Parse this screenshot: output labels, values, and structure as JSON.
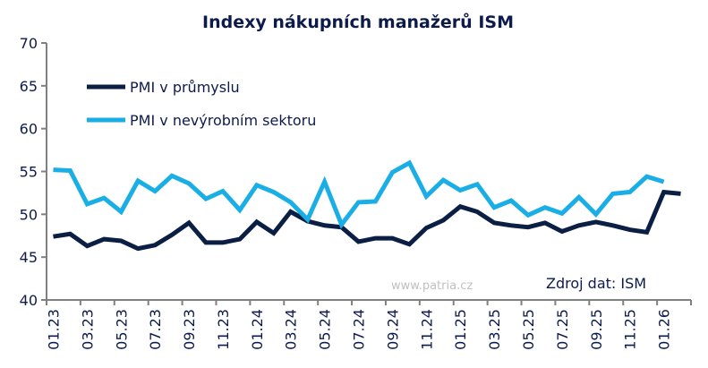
{
  "chart_data": {
    "type": "line",
    "title": "Indexy nákupních manažerů ISM",
    "xlabel": "",
    "ylabel": "",
    "ylim": [
      40,
      70
    ],
    "yticks": [
      40,
      45,
      50,
      55,
      60,
      65,
      70
    ],
    "grid": false,
    "legend_position": "top-left",
    "categories": [
      "01.23",
      "02.23",
      "03.23",
      "04.23",
      "05.23",
      "06.23",
      "07.23",
      "08.23",
      "09.23",
      "10.23",
      "11.23",
      "12.23",
      "01.24",
      "02.24",
      "03.24",
      "04.24",
      "05.24",
      "06.24",
      "07.24",
      "08.24",
      "09.24",
      "10.24",
      "11.24",
      "12.24",
      "01.25",
      "02.25",
      "03.25",
      "04.25",
      "05.25",
      "06.25",
      "07.25",
      "08.25",
      "09.25",
      "10.25",
      "11.25",
      "12.25",
      "01.26",
      "02.26"
    ],
    "series": [
      {
        "name": "PMI v průmyslu",
        "color": "#0b1f45",
        "values": [
          47.4,
          47.7,
          46.3,
          47.1,
          46.9,
          46.0,
          46.4,
          47.6,
          49.0,
          46.7,
          46.7,
          47.1,
          49.1,
          47.8,
          50.3,
          49.2,
          48.7,
          48.5,
          46.8,
          47.2,
          47.2,
          46.5,
          48.4,
          49.3,
          50.9,
          50.3,
          49.0,
          48.7,
          48.5,
          49.0,
          48.0,
          48.7,
          49.1,
          48.7,
          48.2,
          47.9,
          52.6,
          52.4
        ]
      },
      {
        "name": "PMI v nevýrobním sektoru",
        "color": "#1aaee6",
        "values": [
          55.2,
          55.1,
          51.2,
          51.9,
          50.3,
          53.9,
          52.7,
          54.5,
          53.6,
          51.8,
          52.7,
          50.5,
          53.4,
          52.6,
          51.4,
          49.4,
          53.8,
          48.8,
          51.4,
          51.5,
          54.9,
          56.0,
          52.1,
          54.0,
          52.8,
          53.5,
          50.8,
          51.6,
          49.9,
          50.8,
          50.1,
          52.0,
          50.0,
          52.4,
          52.6,
          54.4,
          53.8,
          null
        ]
      }
    ],
    "annotations": [
      "Zdroj dat: ISM"
    ],
    "watermark": "www.patria.cz"
  }
}
